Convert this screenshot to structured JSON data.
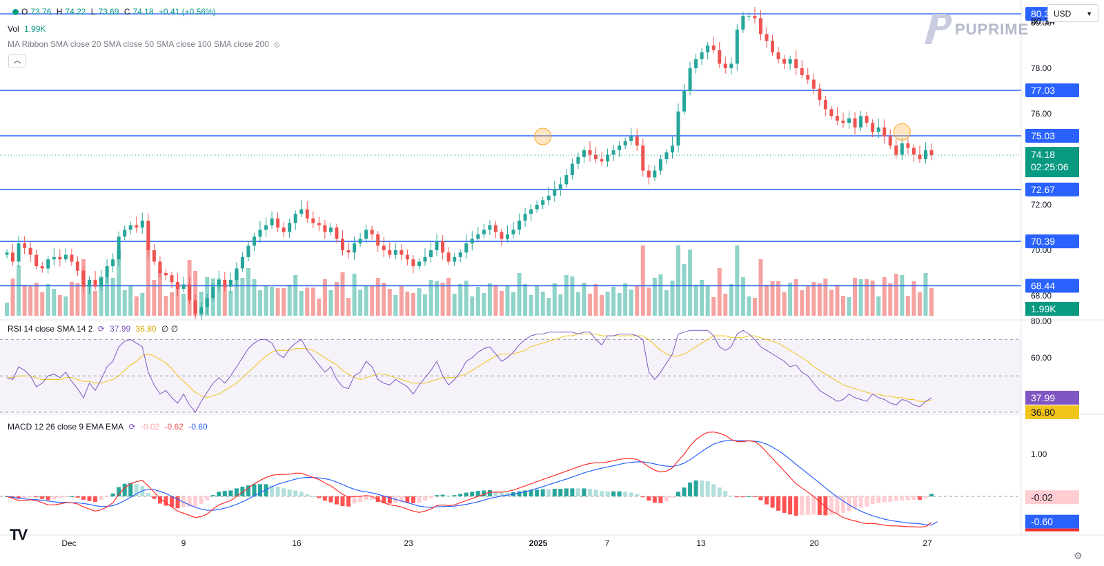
{
  "header": {
    "ohlc": {
      "open_label": "O",
      "open": "73.76",
      "high_label": "H",
      "high": "74.22",
      "low_label": "L",
      "low": "73.69",
      "close_label": "C",
      "close": "74.18",
      "change": "+0.41 (+0.56%)"
    },
    "volume_label": "Vol",
    "volume_value": "1.99K",
    "ma_ribbon": "MA Ribbon SMA close 20 SMA close 50 SMA close 100 SMA close 200",
    "collapse_icon": "chevron-up-icon",
    "currency": "USD"
  },
  "logo": {
    "text": "PUPRIME",
    "icon": "puprime-logo-icon"
  },
  "branding": {
    "icon": "tradingview-logo-icon"
  },
  "settings": {
    "icon": "gear-icon"
  },
  "colors": {
    "up": "#26a69a",
    "down": "#ef5350",
    "level_line": "#2962ff",
    "rsi_line": "#7e57c2",
    "rsi_ma": "#f0c419",
    "macd_line": "#ff2c2c",
    "signal_line": "#2962ff",
    "last_price": "#089981"
  },
  "rsi_legend": {
    "label": "RSI 14 close SMA 14 2",
    "rsi": "37.99",
    "sma": "36.80",
    "extra": "∅ ∅"
  },
  "macd_legend": {
    "label": "MACD 12 26 close 9 EMA EMA",
    "hist": "-0.02",
    "macd": "-0.62",
    "signal": "-0.60"
  },
  "chart_data": [
    {
      "type": "candlestick",
      "price_axis_ticks": [
        "80.00",
        "78.00",
        "76.00",
        "74.00",
        "72.00",
        "70.00",
        "68.00"
      ],
      "price_range": [
        67.0,
        81.0
      ],
      "x_ticks": [
        "Dec",
        "9",
        "16",
        "23",
        "2025",
        "7",
        "13",
        "20",
        "27"
      ],
      "support_resistance_levels": [
        "80.39",
        "77.03",
        "75.03",
        "72.67",
        "70.39",
        "68.44"
      ],
      "high_marker": "80.34",
      "last_price": "74.18",
      "countdown": "02:25:06",
      "volume_last": "1.99K",
      "highlighted_points": [
        {
          "bar": 150,
          "price": 75.0
        },
        {
          "bar": 251,
          "price": 75.2
        }
      ],
      "closes": [
        69.9,
        69.5,
        70.3,
        70.1,
        69.8,
        69.3,
        69.2,
        69.6,
        69.7,
        69.6,
        69.8,
        69.5,
        69.1,
        68.4,
        68.7,
        68.4,
        68.8,
        69.3,
        69.6,
        70.6,
        70.9,
        71.1,
        71.0,
        71.3,
        70.0,
        69.5,
        69.0,
        68.9,
        68.6,
        68.3,
        68.5,
        67.8,
        67.2,
        67.5,
        67.9,
        68.4,
        68.7,
        68.4,
        68.7,
        69.2,
        69.7,
        70.2,
        70.6,
        70.9,
        71.1,
        71.4,
        71.0,
        70.8,
        71.2,
        71.6,
        71.8,
        71.4,
        71.2,
        71.1,
        70.8,
        71.0,
        70.5,
        70.0,
        69.9,
        70.3,
        70.5,
        70.9,
        70.7,
        70.2,
        70.0,
        69.8,
        70.0,
        69.8,
        69.6,
        69.3,
        69.5,
        69.7,
        70.0,
        70.4,
        69.9,
        69.5,
        69.7,
        69.9,
        70.3,
        70.5,
        70.7,
        70.9,
        71.1,
        70.8,
        70.5,
        70.7,
        70.9,
        71.3,
        71.6,
        71.8,
        72.0,
        72.2,
        72.4,
        72.7,
        72.9,
        73.3,
        73.8,
        74.1,
        74.4,
        74.2,
        74.0,
        73.9,
        74.2,
        74.4,
        74.6,
        74.8,
        75.0,
        74.6,
        73.5,
        73.2,
        73.5,
        74.0,
        74.3,
        74.6,
        76.1,
        77.0,
        78.0,
        78.4,
        78.7,
        79.0,
        78.8,
        78.2,
        78.0,
        78.2,
        79.7,
        80.3,
        80.3,
        80.2,
        79.5,
        79.2,
        78.7,
        78.4,
        78.2,
        78.4,
        78.0,
        77.7,
        77.5,
        77.1,
        76.6,
        76.2,
        75.9,
        75.7,
        75.6,
        75.8,
        75.4,
        75.9,
        75.6,
        75.2,
        75.4,
        75.0,
        74.6,
        74.2,
        74.7,
        74.5,
        74.2,
        74.0,
        74.4,
        74.18
      ],
      "volume_note": "volume histogram bars beneath price, green/red by candle direction"
    },
    {
      "type": "line",
      "name": "RSI",
      "y_ticks": [
        "80.00",
        "60.00"
      ],
      "y_range": [
        30,
        80
      ],
      "bands": [
        70,
        50,
        30
      ],
      "last_values": [
        "37.99",
        "36.80"
      ],
      "values": [
        49,
        48,
        55,
        53,
        50,
        44,
        46,
        50,
        51,
        49,
        52,
        47,
        43,
        38,
        46,
        42,
        48,
        55,
        58,
        66,
        69,
        70,
        68,
        66,
        52,
        45,
        40,
        42,
        38,
        35,
        40,
        34,
        30,
        36,
        41,
        46,
        49,
        46,
        50,
        55,
        60,
        65,
        68,
        70,
        70,
        68,
        62,
        60,
        65,
        68,
        70,
        64,
        60,
        56,
        52,
        55,
        48,
        44,
        43,
        50,
        52,
        58,
        55,
        48,
        46,
        45,
        48,
        46,
        44,
        40,
        45,
        49,
        53,
        58,
        50,
        45,
        48,
        52,
        58,
        60,
        63,
        65,
        66,
        62,
        58,
        60,
        63,
        67,
        70,
        72,
        73,
        73,
        74,
        74,
        74,
        74,
        74,
        73,
        74,
        74,
        70,
        67,
        72,
        72,
        73,
        73,
        73,
        72,
        70,
        52,
        48,
        52,
        57,
        62,
        73,
        74,
        75,
        75,
        75,
        75,
        72,
        66,
        64,
        66,
        73,
        75,
        73,
        70,
        66,
        64,
        62,
        60,
        58,
        55,
        56,
        52,
        50,
        46,
        42,
        40,
        38,
        36,
        37,
        40,
        38,
        37,
        36,
        40,
        38,
        37,
        35,
        34,
        37,
        36,
        34,
        33,
        36,
        37.99
      ],
      "ma_values": [
        49,
        49,
        50,
        50,
        50,
        49,
        48,
        48,
        48,
        48,
        49,
        49,
        48,
        47,
        47,
        46,
        46,
        47,
        48,
        50,
        53,
        56,
        58,
        61,
        62,
        61,
        59,
        57,
        54,
        50,
        47,
        44,
        41,
        39,
        38,
        39,
        40,
        42,
        44,
        46,
        49,
        52,
        55,
        58,
        61,
        63,
        64,
        64,
        64,
        65,
        65,
        65,
        64,
        62,
        60,
        58,
        56,
        53,
        51,
        49,
        48,
        49,
        50,
        51,
        51,
        50,
        49,
        48,
        47,
        46,
        46,
        46,
        47,
        48,
        49,
        49,
        49,
        50,
        51,
        53,
        55,
        57,
        59,
        61,
        62,
        62,
        62,
        63,
        64,
        66,
        67,
        68,
        69,
        70,
        71,
        72,
        72,
        73,
        73,
        73,
        73,
        72,
        72,
        72,
        72,
        72,
        72,
        72,
        72,
        70,
        67,
        64,
        62,
        61,
        61,
        62,
        64,
        66,
        68,
        70,
        72,
        72,
        72,
        71,
        71,
        71,
        72,
        72,
        71,
        70,
        69,
        68,
        66,
        64,
        62,
        60,
        58,
        55,
        53,
        51,
        49,
        47,
        45,
        44,
        43,
        42,
        41,
        40,
        40,
        39,
        39,
        38,
        38,
        37,
        37,
        36,
        36,
        36.8
      ]
    },
    {
      "type": "line",
      "name": "MACD",
      "y_ticks": [
        "1.00"
      ],
      "y_range": [
        -0.9,
        1.9
      ],
      "last_values": [
        "-0.02",
        "-0.62",
        "-0.60"
      ],
      "macd": [
        0.0,
        -0.05,
        -0.1,
        -0.1,
        -0.08,
        -0.1,
        -0.15,
        -0.2,
        -0.2,
        -0.18,
        -0.15,
        -0.15,
        -0.18,
        -0.25,
        -0.3,
        -0.35,
        -0.32,
        -0.25,
        -0.15,
        0.05,
        0.2,
        0.3,
        0.35,
        0.38,
        0.25,
        0.1,
        -0.05,
        -0.15,
        -0.25,
        -0.35,
        -0.4,
        -0.45,
        -0.5,
        -0.48,
        -0.42,
        -0.3,
        -0.2,
        -0.15,
        -0.1,
        0.0,
        0.1,
        0.2,
        0.3,
        0.38,
        0.45,
        0.5,
        0.52,
        0.52,
        0.53,
        0.55,
        0.55,
        0.5,
        0.45,
        0.4,
        0.32,
        0.25,
        0.15,
        0.05,
        -0.02,
        0.0,
        0.0,
        0.02,
        0.0,
        -0.08,
        -0.15,
        -0.2,
        -0.22,
        -0.25,
        -0.3,
        -0.35,
        -0.38,
        -0.35,
        -0.3,
        -0.22,
        -0.2,
        -0.22,
        -0.2,
        -0.15,
        -0.1,
        -0.05,
        0.0,
        0.05,
        0.1,
        0.1,
        0.1,
        0.12,
        0.15,
        0.2,
        0.25,
        0.3,
        0.35,
        0.4,
        0.45,
        0.5,
        0.55,
        0.6,
        0.65,
        0.7,
        0.75,
        0.78,
        0.8,
        0.8,
        0.82,
        0.85,
        0.88,
        0.9,
        0.9,
        0.88,
        0.8,
        0.7,
        0.62,
        0.58,
        0.6,
        0.68,
        0.85,
        1.0,
        1.2,
        1.35,
        1.45,
        1.52,
        1.53,
        1.5,
        1.45,
        1.35,
        1.3,
        1.3,
        1.32,
        1.3,
        1.2,
        1.05,
        0.9,
        0.75,
        0.6,
        0.45,
        0.3,
        0.2,
        0.1,
        0.0,
        -0.12,
        -0.25,
        -0.35,
        -0.42,
        -0.5,
        -0.55,
        -0.58,
        -0.62,
        -0.65,
        -0.64,
        -0.66,
        -0.68,
        -0.7,
        -0.7,
        -0.71,
        -0.72,
        -0.72,
        -0.73,
        -0.72,
        -0.62
      ],
      "signal": [
        0.0,
        -0.02,
        -0.04,
        -0.06,
        -0.07,
        -0.08,
        -0.09,
        -0.11,
        -0.13,
        -0.14,
        -0.14,
        -0.15,
        -0.15,
        -0.17,
        -0.19,
        -0.22,
        -0.24,
        -0.24,
        -0.22,
        -0.17,
        -0.1,
        -0.02,
        0.06,
        0.13,
        0.17,
        0.16,
        0.12,
        0.07,
        0.0,
        -0.07,
        -0.14,
        -0.2,
        -0.26,
        -0.3,
        -0.33,
        -0.33,
        -0.31,
        -0.28,
        -0.24,
        -0.19,
        -0.13,
        -0.06,
        0.01,
        0.09,
        0.16,
        0.23,
        0.29,
        0.33,
        0.37,
        0.41,
        0.44,
        0.45,
        0.45,
        0.44,
        0.42,
        0.39,
        0.34,
        0.28,
        0.22,
        0.17,
        0.13,
        0.11,
        0.08,
        0.05,
        0.01,
        -0.03,
        -0.07,
        -0.11,
        -0.15,
        -0.19,
        -0.23,
        -0.25,
        -0.26,
        -0.25,
        -0.24,
        -0.24,
        -0.23,
        -0.21,
        -0.19,
        -0.16,
        -0.13,
        -0.09,
        -0.05,
        -0.02,
        0.01,
        0.03,
        0.05,
        0.08,
        0.11,
        0.15,
        0.19,
        0.23,
        0.28,
        0.32,
        0.37,
        0.41,
        0.46,
        0.51,
        0.56,
        0.6,
        0.64,
        0.67,
        0.7,
        0.73,
        0.76,
        0.79,
        0.81,
        0.82,
        0.82,
        0.8,
        0.77,
        0.74,
        0.72,
        0.71,
        0.74,
        0.79,
        0.87,
        0.97,
        1.07,
        1.16,
        1.24,
        1.29,
        1.32,
        1.33,
        1.32,
        1.32,
        1.32,
        1.31,
        1.29,
        1.24,
        1.17,
        1.09,
        0.99,
        0.88,
        0.76,
        0.65,
        0.54,
        0.43,
        0.32,
        0.2,
        0.09,
        -0.01,
        -0.11,
        -0.2,
        -0.28,
        -0.35,
        -0.41,
        -0.46,
        -0.5,
        -0.54,
        -0.57,
        -0.59,
        -0.61,
        -0.63,
        -0.64,
        -0.65,
        -0.67,
        -0.68,
        -0.6
      ]
    }
  ]
}
